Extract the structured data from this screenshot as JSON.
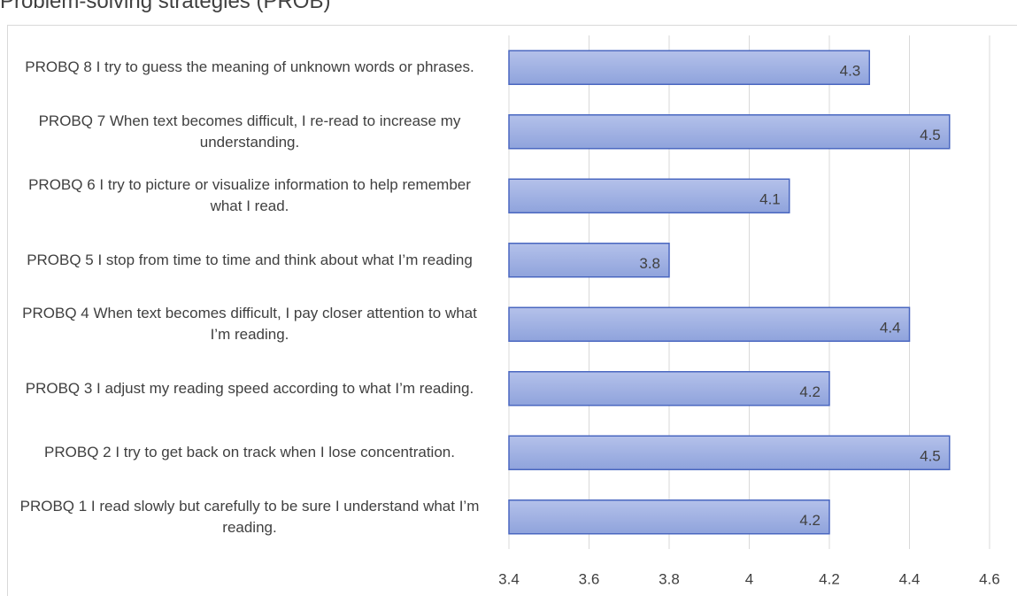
{
  "chart_data": {
    "type": "bar",
    "orientation": "horizontal",
    "title": "Problem-solving strategies (PROB)",
    "categories": [
      "PROBQ 8 I try to guess the meaning of unknown words or phrases.",
      "PROBQ 7 When text becomes difficult, I re-read to increase my understanding.",
      "PROBQ 6 I try to picture or visualize information to help remember what I read.",
      "PROBQ 5 I stop from time to time and think about what I’m reading",
      "PROBQ 4 When text becomes difficult, I pay closer attention to what I’m reading.",
      "PROBQ 3 I adjust my reading speed according to what I’m reading.",
      "PROBQ 2 I try to get back on track when I lose concentration.",
      "PROBQ 1 I read slowly but carefully to be sure I understand what I’m reading."
    ],
    "values": [
      4.3,
      4.5,
      4.1,
      3.8,
      4.4,
      4.2,
      4.5,
      4.2
    ],
    "color": "#a3b3e2",
    "xlim": [
      3.4,
      4.6
    ],
    "xticks": [
      3.4,
      3.6,
      3.8,
      4,
      4.2,
      4.4,
      4.6
    ],
    "grid": true
  }
}
